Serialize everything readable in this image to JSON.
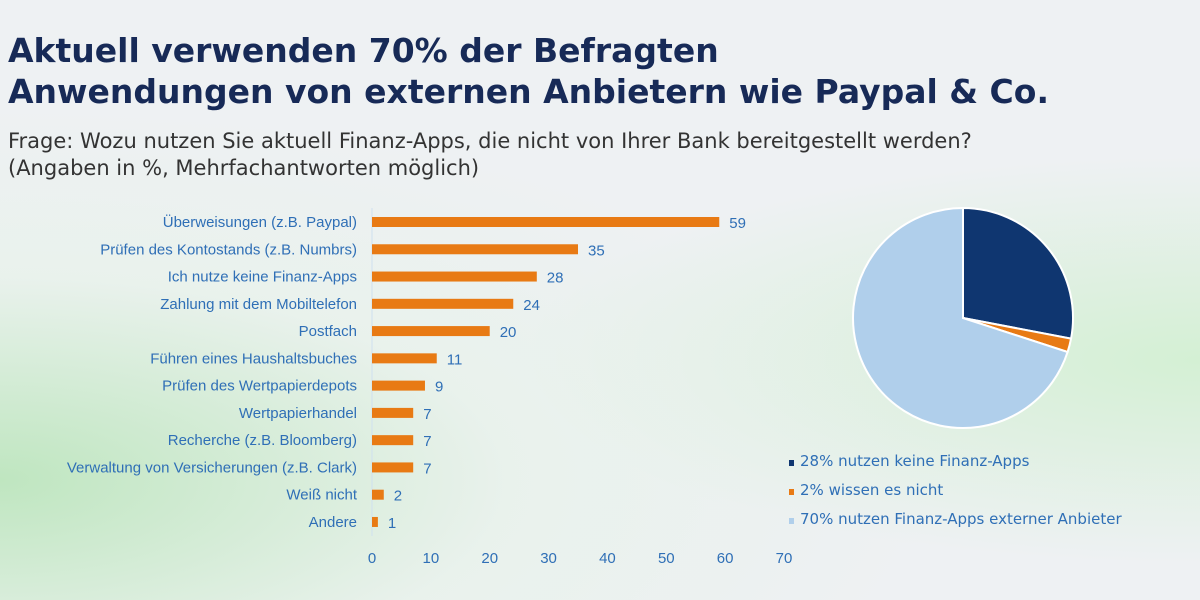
{
  "title_line1": "Aktuell verwenden 70% der Befragten",
  "title_line2": "Anwendungen von externen Anbietern wie Paypal & Co.",
  "subtitle_line1": "Frage: Wozu nutzen Sie aktuell Finanz-Apps, die nicht von Ihrer Bank bereitgestellt werden?",
  "subtitle_line2": "(Angaben in %, Mehrfachantworten möglich)",
  "chart_data": [
    {
      "type": "bar",
      "orientation": "horizontal",
      "categories": [
        "Überweisungen (z.B. Paypal)",
        "Prüfen des Kontostands (z.B. Numbrs)",
        "Ich nutze keine Finanz-Apps",
        "Zahlung mit dem Mobiltelefon",
        "Postfach",
        "Führen eines Haushaltsbuches",
        "Prüfen des Wertpapierdepots",
        "Wertpapierhandel",
        "Recherche (z.B. Bloomberg)",
        "Verwaltung von Versicherungen (z.B. Clark)",
        "Weiß nicht",
        "Andere"
      ],
      "values": [
        59,
        35,
        28,
        24,
        20,
        11,
        9,
        7,
        7,
        7,
        2,
        1
      ],
      "xlim": [
        0,
        70
      ],
      "xticks": [
        0,
        10,
        20,
        30,
        40,
        50,
        60,
        70
      ],
      "grid": false,
      "color": "#e87a14"
    },
    {
      "type": "pie",
      "slices": [
        {
          "label": "28% nutzen keine Finanz-Apps",
          "value": 28,
          "color": "#0f3670"
        },
        {
          "label": "2% wissen es nicht",
          "value": 2,
          "color": "#e87a14"
        },
        {
          "label": "70% nutzen Finanz-Apps externer Anbieter",
          "value": 70,
          "color": "#b0cfeb"
        }
      ],
      "legend": "bottom"
    }
  ]
}
